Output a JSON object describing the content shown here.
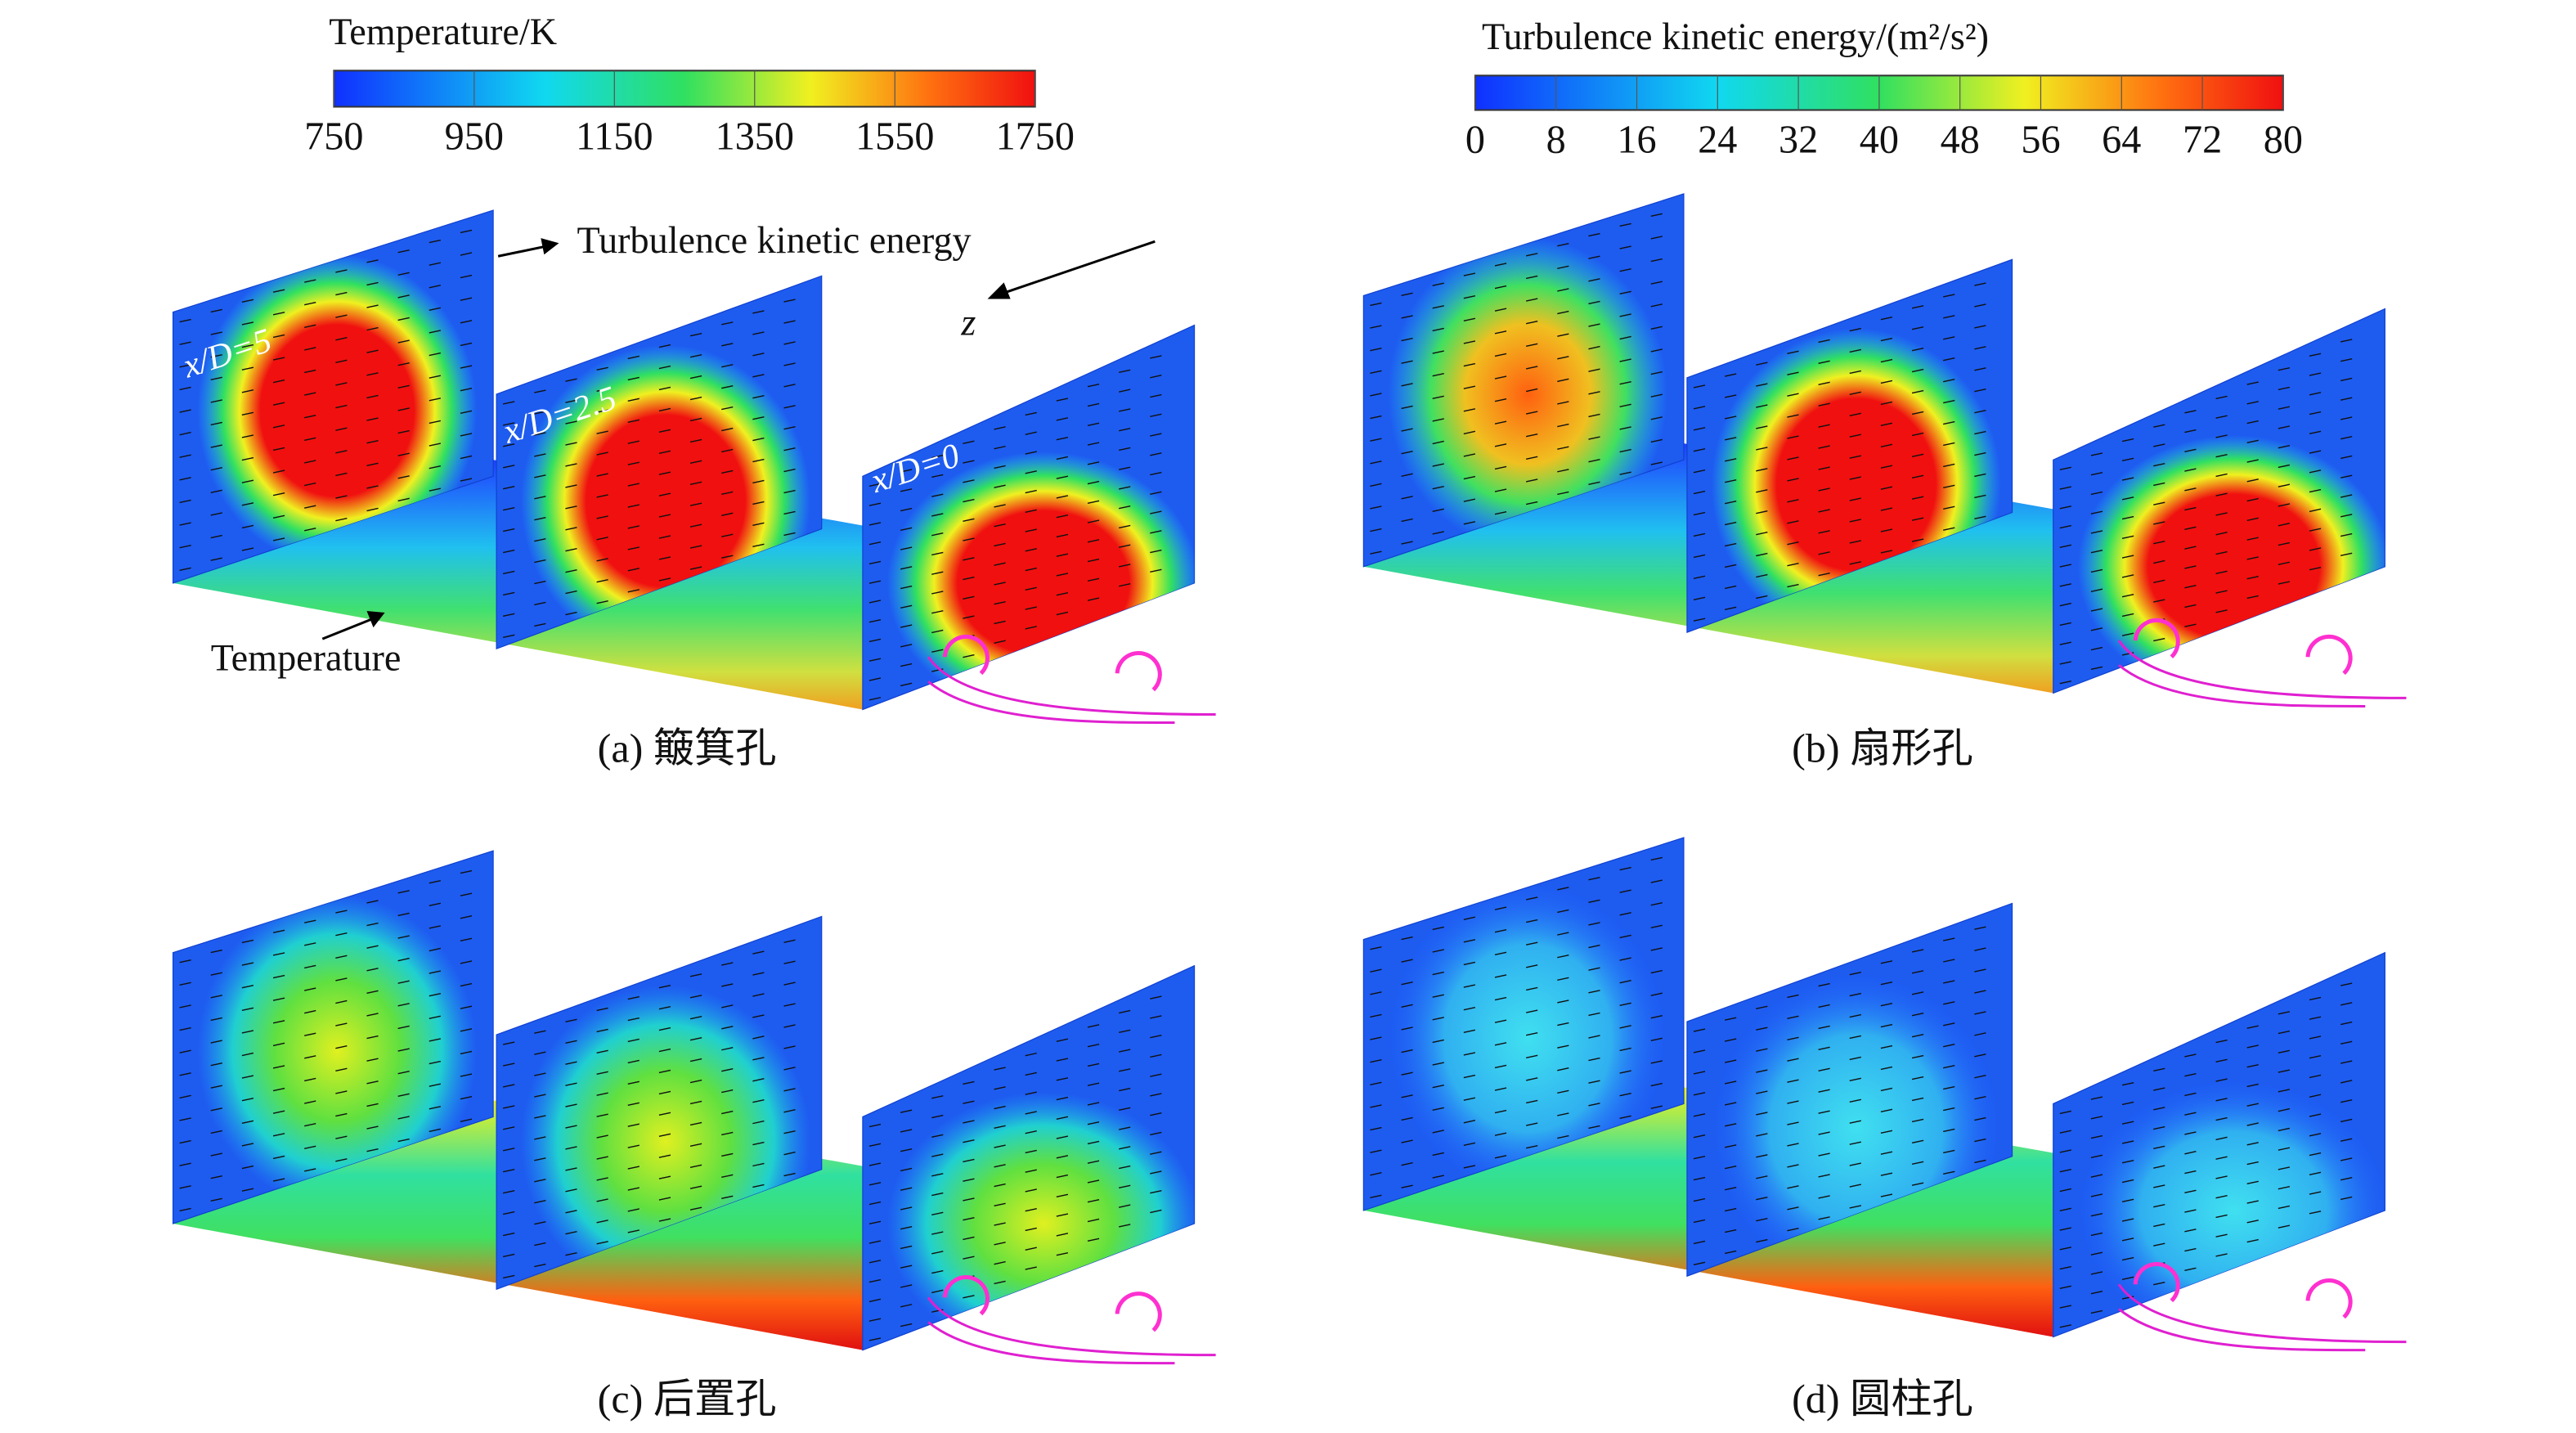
{
  "colorbars": [
    {
      "title": "Temperature/K",
      "range": [
        750,
        1750
      ],
      "ticks": [
        750,
        950,
        1150,
        1350,
        1550,
        1750
      ]
    },
    {
      "title": "Turbulence kinetic energy/(m²/s²)",
      "range": [
        0,
        80
      ],
      "ticks": [
        0,
        8,
        16,
        24,
        32,
        40,
        48,
        56,
        64,
        72,
        80
      ]
    }
  ],
  "annotations": {
    "tke_label": "Turbulence kinetic energy",
    "z_label": "z",
    "temperature_label": "Temperature",
    "planes": [
      "x/D=5",
      "x/D=2.5",
      "x/D=0"
    ]
  },
  "panels": [
    {
      "caption": "(a) 簸箕孔"
    },
    {
      "caption": "(b) 扇形孔"
    },
    {
      "caption": "(c) 后置孔"
    },
    {
      "caption": "(d) 圆柱孔"
    }
  ]
}
